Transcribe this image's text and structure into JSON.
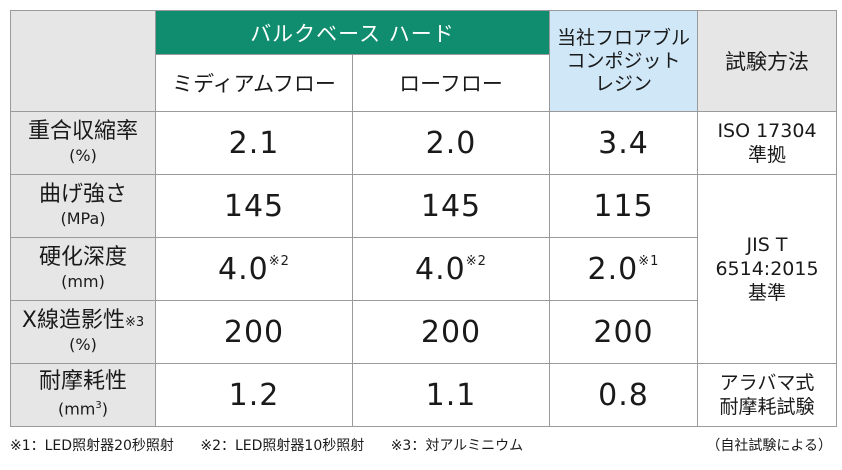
{
  "header": {
    "product_group": "バルクベース ハード",
    "medium_flow": "ミディアムフロー",
    "low_flow": "ローフロー",
    "competitor_lines": [
      "当社フロアブル",
      "コンポジット",
      "レジン"
    ],
    "test_method": "試験方法"
  },
  "rows": [
    {
      "label": "重合収縮率",
      "label_note": "",
      "unit": "(%)",
      "unit_sup": "",
      "values": [
        "2.1",
        "2.0",
        "3.4"
      ],
      "value_notes": [
        "",
        "",
        ""
      ],
      "method_lines": [
        "ISO 17304",
        "準拠"
      ]
    },
    {
      "label": "曲げ強さ",
      "label_note": "",
      "unit": "(MPa)",
      "unit_sup": "",
      "values": [
        "145",
        "145",
        "115"
      ],
      "value_notes": [
        "",
        "",
        ""
      ],
      "method_lines": [
        "JIS T",
        "6514:2015",
        "基準"
      ]
    },
    {
      "label": "硬化深度",
      "label_note": "",
      "unit": "(mm)",
      "unit_sup": "",
      "values": [
        "4.0",
        "4.0",
        "2.0"
      ],
      "value_notes": [
        "※2",
        "※2",
        "※1"
      ],
      "method_lines": []
    },
    {
      "label": "X線造影性",
      "label_note": "※3",
      "unit": "(%)",
      "unit_sup": "",
      "values": [
        "200",
        "200",
        "200"
      ],
      "value_notes": [
        "",
        "",
        ""
      ],
      "method_lines": []
    },
    {
      "label": "耐摩耗性",
      "label_note": "",
      "unit": "(mm",
      "unit_sup": "3",
      "unit_close": ")",
      "values": [
        "1.2",
        "1.1",
        "0.8"
      ],
      "value_notes": [
        "",
        "",
        ""
      ],
      "method_lines": [
        "アラバマ式",
        "耐摩耗試験"
      ]
    }
  ],
  "footnotes": {
    "n1": "※1：LED照射器20秒照射",
    "n2": "※2：LED照射器10秒照射",
    "n3": "※3：対アルミニウム",
    "source": "（自社試験による）"
  },
  "colors": {
    "brand_green": "#0f8d6e",
    "competitor_blue": "#cfe7f7",
    "header_gray": "#e6e6e6",
    "border": "#9a9a9a"
  }
}
